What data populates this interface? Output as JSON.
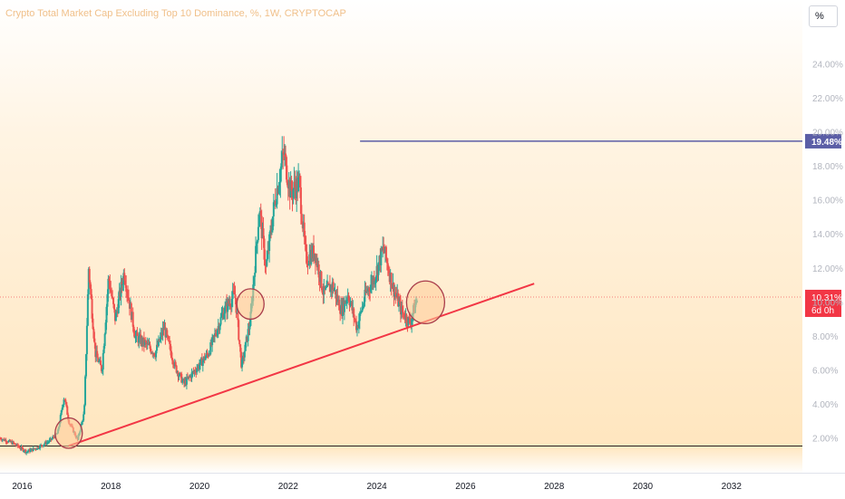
{
  "chart_data": {
    "type": "candlestick",
    "title": "Crypto Total Market Cap Excluding Top 10 Dominance, %, 1W, CRYPTOCAP",
    "unit_label": "%",
    "y_axis": {
      "ticks": [
        "2.00%",
        "4.00%",
        "6.00%",
        "8.00%",
        "10.00%",
        "12.00%",
        "14.00%",
        "16.00%",
        "18.00%",
        "20.00%",
        "22.00%",
        "24.00%"
      ],
      "range": [
        0.5,
        25.5
      ]
    },
    "x_axis": {
      "ticks": [
        "2016",
        "2018",
        "2020",
        "2022",
        "2024",
        "2026",
        "2028",
        "2030",
        "2032"
      ],
      "range": [
        2015.5,
        2033.6
      ]
    },
    "price_path": [
      [
        2015.5,
        2.0
      ],
      [
        2015.8,
        1.7
      ],
      [
        2016.1,
        1.2
      ],
      [
        2016.3,
        1.4
      ],
      [
        2016.6,
        1.8
      ],
      [
        2016.8,
        2.3
      ],
      [
        2016.95,
        4.5
      ],
      [
        2017.05,
        3.0
      ],
      [
        2017.25,
        1.9
      ],
      [
        2017.4,
        3.5
      ],
      [
        2017.5,
        12.0
      ],
      [
        2017.65,
        7.0
      ],
      [
        2017.8,
        6.0
      ],
      [
        2017.95,
        11.5
      ],
      [
        2018.1,
        9.0
      ],
      [
        2018.3,
        11.8
      ],
      [
        2018.55,
        8.0
      ],
      [
        2018.8,
        7.5
      ],
      [
        2019.0,
        7.0
      ],
      [
        2019.2,
        8.5
      ],
      [
        2019.45,
        6.2
      ],
      [
        2019.65,
        5.2
      ],
      [
        2019.9,
        6.0
      ],
      [
        2020.2,
        7.0
      ],
      [
        2020.55,
        9.5
      ],
      [
        2020.8,
        10.5
      ],
      [
        2020.95,
        6.2
      ],
      [
        2021.15,
        9.0
      ],
      [
        2021.35,
        15.5
      ],
      [
        2021.5,
        12.0
      ],
      [
        2021.7,
        16.0
      ],
      [
        2021.9,
        18.8
      ],
      [
        2022.05,
        16.5
      ],
      [
        2022.25,
        17.0
      ],
      [
        2022.4,
        12.5
      ],
      [
        2022.6,
        13.0
      ],
      [
        2022.8,
        10.5
      ],
      [
        2023.0,
        11.0
      ],
      [
        2023.2,
        9.5
      ],
      [
        2023.35,
        10.5
      ],
      [
        2023.55,
        8.5
      ],
      [
        2023.75,
        10.5
      ],
      [
        2023.95,
        11.5
      ],
      [
        2024.15,
        13.2
      ],
      [
        2024.35,
        11.0
      ],
      [
        2024.55,
        9.5
      ],
      [
        2024.75,
        8.8
      ],
      [
        2024.92,
        10.3
      ]
    ],
    "annotations": {
      "horizontal_level": {
        "value": 19.48,
        "label": "19.48%",
        "from_x": 2018.1
      },
      "trendline": {
        "start": [
          2017.05,
          1.55
        ],
        "end": [
          2027.55,
          11.1
        ]
      },
      "current_price": {
        "value": 10.31,
        "label": "10.31%",
        "countdown": "6d 0h"
      },
      "circles": [
        {
          "x": 2017.05,
          "y": 2.3
        },
        {
          "x": 2021.15,
          "y": 9.9
        },
        {
          "x": 2025.1,
          "y": 10.0
        }
      ]
    },
    "colors": {
      "up": "#26a69a",
      "down": "#ef5350",
      "trendline": "#f23645",
      "level_line": "#5b5ea6",
      "current_price_label": "#f23645",
      "circle_fill": "#ffcc99",
      "circle_stroke": "#a83b4a"
    }
  }
}
